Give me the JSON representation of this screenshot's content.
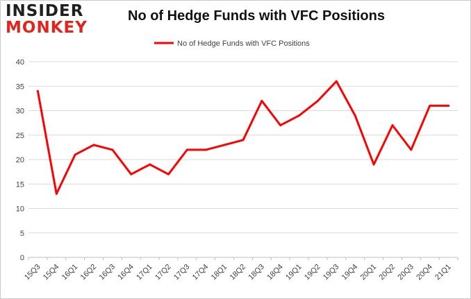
{
  "logo": {
    "line1": "INSIDER",
    "line2": "MONKEY"
  },
  "colors": {
    "series": "#ff0000",
    "grid": "#d9d9d9",
    "axis": "#bfbfbf",
    "logo_accent": "#e2241c"
  },
  "chart_data": {
    "type": "line",
    "title": "No of Hedge Funds with VFC Positions",
    "xlabel": "",
    "ylabel": "",
    "ylim": [
      0,
      40
    ],
    "yticks": [
      0,
      5,
      10,
      15,
      20,
      25,
      30,
      35,
      40
    ],
    "grid": true,
    "legend_position": "top-center",
    "categories": [
      "15Q3",
      "15Q4",
      "16Q1",
      "16Q2",
      "16Q3",
      "16Q4",
      "17Q1",
      "17Q2",
      "17Q3",
      "17Q4",
      "18Q1",
      "18Q2",
      "18Q3",
      "18Q4",
      "19Q1",
      "19Q2",
      "19Q3",
      "19Q4",
      "20Q1",
      "20Q2",
      "20Q3",
      "20Q4",
      "21Q1"
    ],
    "series": [
      {
        "name": "No of Hedge Funds with VFC Positions",
        "values": [
          34,
          13,
          21,
          23,
          22,
          17,
          19,
          17,
          22,
          22,
          23,
          24,
          32,
          27,
          29,
          32,
          36,
          29,
          19,
          27,
          22,
          31,
          31
        ]
      }
    ]
  }
}
